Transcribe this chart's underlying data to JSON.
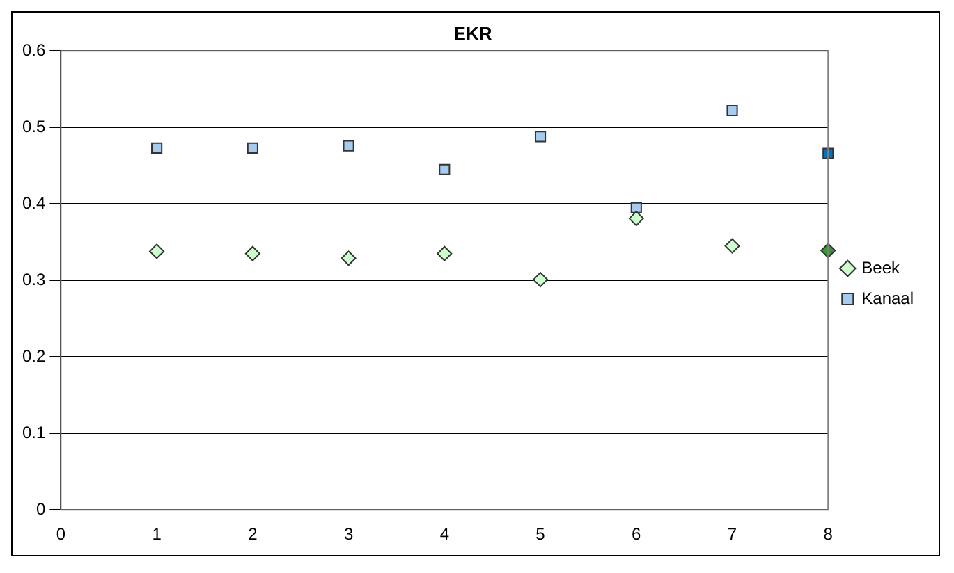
{
  "chart_data": {
    "type": "scatter",
    "title": "EKR",
    "x": [
      1,
      2,
      3,
      4,
      5,
      6,
      7,
      8
    ],
    "series": [
      {
        "name": "Beek",
        "marker": "diamond",
        "color": "#ccffcc",
        "colors": [
          "#ccffcc",
          "#ccffcc",
          "#ccffcc",
          "#ccffcc",
          "#ccffcc",
          "#ccffcc",
          "#ccffcc",
          "#339933"
        ],
        "values": [
          0.338,
          0.335,
          0.329,
          0.335,
          0.301,
          0.381,
          0.345,
          0.339
        ]
      },
      {
        "name": "Kanaal",
        "marker": "square",
        "color": "#a6caf0",
        "colors": [
          "#a6caf0",
          "#a6caf0",
          "#a6caf0",
          "#a6caf0",
          "#a6caf0",
          "#a6caf0",
          "#a6caf0",
          "#0070c0"
        ],
        "values": [
          0.473,
          0.473,
          0.476,
          0.445,
          0.488,
          0.395,
          0.522,
          0.466
        ]
      }
    ],
    "xlim": [
      0,
      8
    ],
    "xticks": [
      0,
      1,
      2,
      3,
      4,
      5,
      6,
      7,
      8
    ],
    "ylim": [
      0,
      0.6
    ],
    "yticks": [
      0,
      0.1,
      0.2,
      0.3,
      0.4,
      0.5,
      0.6
    ],
    "grid": "y",
    "legend": "right"
  }
}
